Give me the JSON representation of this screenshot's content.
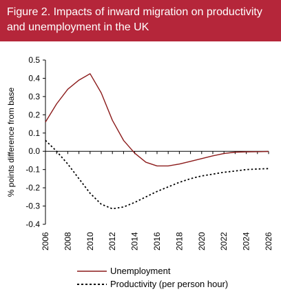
{
  "header": {
    "title": "Figure 2. Impacts of inward migration on productivity and unemployment in the UK"
  },
  "colors": {
    "header_bg": "#b5263a",
    "unemployment": "#8b1a1a",
    "productivity": "#000000"
  },
  "chart_data": {
    "type": "line",
    "ylabel": "% points difference from base",
    "xlabel": "",
    "xlim": [
      2006,
      2026
    ],
    "ylim": [
      -0.4,
      0.5
    ],
    "y_ticks": [
      "0.5",
      "0.4",
      "0.3",
      "0.2",
      "0.1",
      "0.0",
      "-0.1",
      "-0.2",
      "-0.3",
      "-0.4"
    ],
    "x_ticks": [
      "2006",
      "2008",
      "2010",
      "2012",
      "2014",
      "2016",
      "2018",
      "2020",
      "2022",
      "2024",
      "2026"
    ],
    "legend_placement": "bottom",
    "grid": false,
    "series": [
      {
        "name": "Unemployment",
        "style": "solid",
        "x": [
          2006,
          2007,
          2008,
          2009,
          2010,
          2011,
          2012,
          2013,
          2014,
          2015,
          2016,
          2017,
          2018,
          2019,
          2020,
          2021,
          2022,
          2023,
          2024,
          2025,
          2026
        ],
        "values": [
          0.16,
          0.26,
          0.34,
          0.39,
          0.425,
          0.32,
          0.17,
          0.06,
          -0.01,
          -0.06,
          -0.08,
          -0.08,
          -0.07,
          -0.055,
          -0.04,
          -0.025,
          -0.012,
          -0.005,
          -0.003,
          -0.002,
          -0.001
        ]
      },
      {
        "name": "Productivity (per person hour)",
        "style": "dotted",
        "x": [
          2006,
          2007,
          2008,
          2009,
          2010,
          2011,
          2012,
          2013,
          2014,
          2015,
          2016,
          2017,
          2018,
          2019,
          2020,
          2021,
          2022,
          2023,
          2024,
          2025,
          2026
        ],
        "values": [
          0.06,
          0.0,
          -0.07,
          -0.15,
          -0.23,
          -0.29,
          -0.315,
          -0.305,
          -0.28,
          -0.25,
          -0.22,
          -0.195,
          -0.17,
          -0.15,
          -0.135,
          -0.125,
          -0.115,
          -0.108,
          -0.1,
          -0.097,
          -0.095
        ]
      }
    ]
  }
}
